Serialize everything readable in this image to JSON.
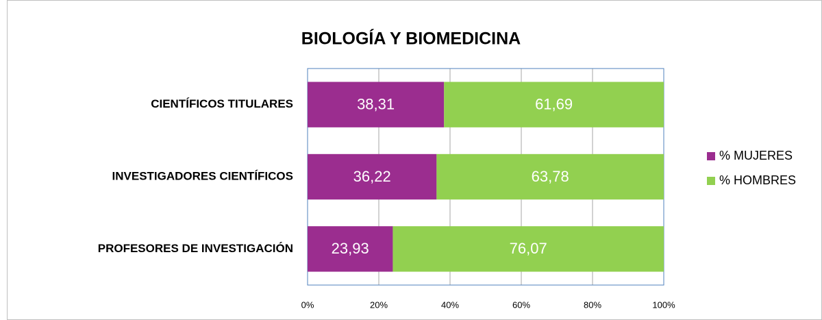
{
  "chart_data": {
    "type": "bar",
    "orientation": "horizontal",
    "stacked": true,
    "title": "BIOLOGÍA Y BIOMEDICINA",
    "categories": [
      "CIENTÍFICOS TITULARES",
      "INVESTIGADORES CIENTÍFICOS",
      "PROFESORES DE INVESTIGACIÓN"
    ],
    "series": [
      {
        "name": "% MUJERES",
        "color": "#9b2d8f",
        "values": [
          38.31,
          36.22,
          23.93
        ],
        "value_labels": [
          "38,31",
          "36,22",
          "23,93"
        ]
      },
      {
        "name": "% HOMBRES",
        "color": "#92d050",
        "values": [
          61.69,
          63.78,
          76.07
        ],
        "value_labels": [
          "61,69",
          "63,78",
          "76,07"
        ]
      }
    ],
    "xlim": [
      0,
      100
    ],
    "xticks": [
      {
        "value": 0,
        "label": "0%"
      },
      {
        "value": 20,
        "label": "20%"
      },
      {
        "value": 40,
        "label": "40%"
      },
      {
        "value": 60,
        "label": "60%"
      },
      {
        "value": 80,
        "label": "80%"
      },
      {
        "value": 100,
        "label": "100%"
      }
    ],
    "grid": true,
    "legend": "right"
  }
}
